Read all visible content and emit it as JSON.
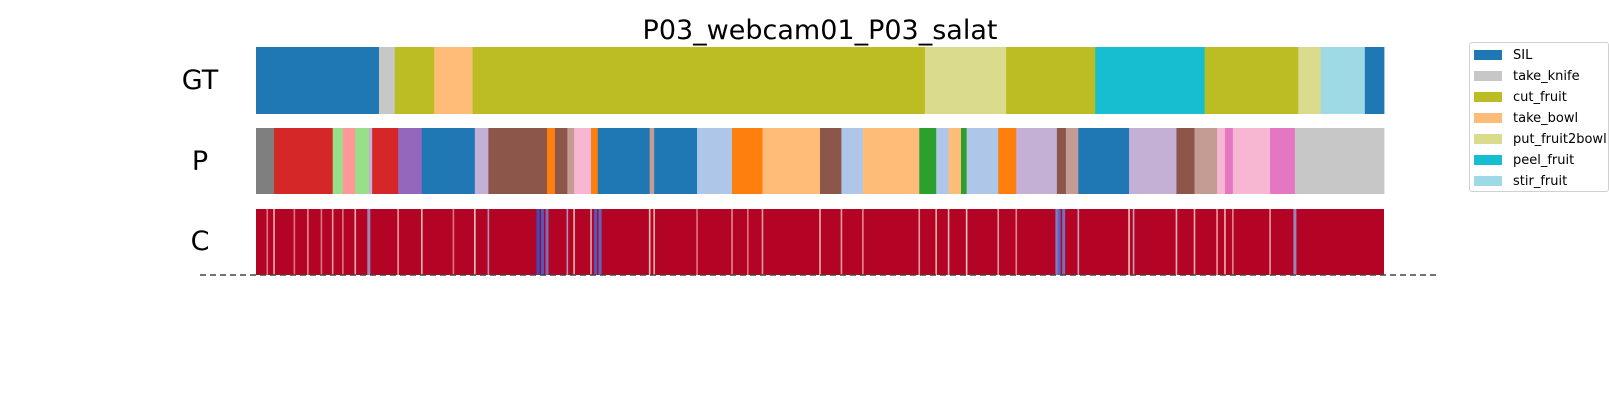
{
  "chart_data": {
    "type": "segmentation_timeline",
    "title": "P03_webcam01_P03_salat",
    "rows": [
      {
        "label": "GT",
        "segments": [
          {
            "start": 0.0,
            "end": 0.109,
            "color": "#1f77b4"
          },
          {
            "start": 0.109,
            "end": 0.123,
            "color": "#c7c7c7"
          },
          {
            "start": 0.123,
            "end": 0.158,
            "color": "#bcbd22"
          },
          {
            "start": 0.158,
            "end": 0.192,
            "color": "#ffbb78"
          },
          {
            "start": 0.192,
            "end": 0.593,
            "color": "#bcbd22"
          },
          {
            "start": 0.593,
            "end": 0.665,
            "color": "#dbdb8d"
          },
          {
            "start": 0.665,
            "end": 0.744,
            "color": "#bcbd22"
          },
          {
            "start": 0.744,
            "end": 0.841,
            "color": "#17becf"
          },
          {
            "start": 0.841,
            "end": 0.924,
            "color": "#bcbd22"
          },
          {
            "start": 0.924,
            "end": 0.944,
            "color": "#dbdb8d"
          },
          {
            "start": 0.944,
            "end": 0.983,
            "color": "#9edae5"
          },
          {
            "start": 0.983,
            "end": 1.0,
            "color": "#1f77b4"
          }
        ]
      },
      {
        "label": "P",
        "segments": [
          {
            "start": 0.0,
            "end": 0.016,
            "color": "#7f7f7f"
          },
          {
            "start": 0.016,
            "end": 0.068,
            "color": "#d62728"
          },
          {
            "start": 0.068,
            "end": 0.077,
            "color": "#98df8a"
          },
          {
            "start": 0.077,
            "end": 0.088,
            "color": "#ff9896"
          },
          {
            "start": 0.088,
            "end": 0.1,
            "color": "#98df8a"
          },
          {
            "start": 0.1,
            "end": 0.103,
            "color": "#c5b0d5"
          },
          {
            "start": 0.103,
            "end": 0.126,
            "color": "#d62728"
          },
          {
            "start": 0.126,
            "end": 0.147,
            "color": "#9467bd"
          },
          {
            "start": 0.147,
            "end": 0.194,
            "color": "#1f77b4"
          },
          {
            "start": 0.194,
            "end": 0.206,
            "color": "#c5b0d5"
          },
          {
            "start": 0.206,
            "end": 0.258,
            "color": "#8c564b"
          },
          {
            "start": 0.258,
            "end": 0.265,
            "color": "#ff7f0e"
          },
          {
            "start": 0.265,
            "end": 0.276,
            "color": "#8c564b"
          },
          {
            "start": 0.276,
            "end": 0.282,
            "color": "#c49c94"
          },
          {
            "start": 0.282,
            "end": 0.297,
            "color": "#f7b6d2"
          },
          {
            "start": 0.297,
            "end": 0.303,
            "color": "#ff7f0e"
          },
          {
            "start": 0.303,
            "end": 0.349,
            "color": "#1f77b4"
          },
          {
            "start": 0.349,
            "end": 0.353,
            "color": "#c49c94"
          },
          {
            "start": 0.353,
            "end": 0.391,
            "color": "#1f77b4"
          },
          {
            "start": 0.391,
            "end": 0.422,
            "color": "#aec7e8"
          },
          {
            "start": 0.422,
            "end": 0.449,
            "color": "#ff7f0e"
          },
          {
            "start": 0.449,
            "end": 0.5,
            "color": "#ffbb78"
          },
          {
            "start": 0.5,
            "end": 0.519,
            "color": "#8c564b"
          },
          {
            "start": 0.519,
            "end": 0.538,
            "color": "#aec7e8"
          },
          {
            "start": 0.538,
            "end": 0.588,
            "color": "#ffbb78"
          },
          {
            "start": 0.588,
            "end": 0.603,
            "color": "#2ca02c"
          },
          {
            "start": 0.603,
            "end": 0.614,
            "color": "#aec7e8"
          },
          {
            "start": 0.614,
            "end": 0.625,
            "color": "#ffbb78"
          },
          {
            "start": 0.625,
            "end": 0.63,
            "color": "#2ca02c"
          },
          {
            "start": 0.63,
            "end": 0.658,
            "color": "#aec7e8"
          },
          {
            "start": 0.658,
            "end": 0.674,
            "color": "#ff7f0e"
          },
          {
            "start": 0.674,
            "end": 0.71,
            "color": "#c5b0d5"
          },
          {
            "start": 0.71,
            "end": 0.718,
            "color": "#8c564b"
          },
          {
            "start": 0.718,
            "end": 0.729,
            "color": "#c49c94"
          },
          {
            "start": 0.729,
            "end": 0.774,
            "color": "#1f77b4"
          },
          {
            "start": 0.774,
            "end": 0.816,
            "color": "#c5b0d5"
          },
          {
            "start": 0.816,
            "end": 0.832,
            "color": "#8c564b"
          },
          {
            "start": 0.832,
            "end": 0.852,
            "color": "#c49c94"
          },
          {
            "start": 0.852,
            "end": 0.859,
            "color": "#f7b6d2"
          },
          {
            "start": 0.859,
            "end": 0.866,
            "color": "#e377c2"
          },
          {
            "start": 0.866,
            "end": 0.899,
            "color": "#f7b6d2"
          },
          {
            "start": 0.899,
            "end": 0.921,
            "color": "#e377c2"
          },
          {
            "start": 0.921,
            "end": 1.0,
            "color": "#c7c7c7"
          }
        ]
      },
      {
        "label": "C",
        "type": "confidence_heat",
        "base_color": "#b40426",
        "low_color": "#3b4cc0",
        "dips": [
          {
            "at": 0.01,
            "level": 0.7
          },
          {
            "at": 0.016,
            "level": 0.55
          },
          {
            "at": 0.034,
            "level": 0.7
          },
          {
            "at": 0.046,
            "level": 0.65
          },
          {
            "at": 0.058,
            "level": 0.7
          },
          {
            "at": 0.068,
            "level": 0.6
          },
          {
            "at": 0.077,
            "level": 0.7
          },
          {
            "at": 0.088,
            "level": 0.55
          },
          {
            "at": 0.1,
            "level": 0.25
          },
          {
            "at": 0.126,
            "level": 0.6
          },
          {
            "at": 0.147,
            "level": 0.45
          },
          {
            "at": 0.175,
            "level": 0.7
          },
          {
            "at": 0.194,
            "level": 0.5
          },
          {
            "at": 0.206,
            "level": 0.3
          },
          {
            "at": 0.25,
            "level": 0.0
          },
          {
            "at": 0.254,
            "level": 0.05
          },
          {
            "at": 0.258,
            "level": 0.15
          },
          {
            "at": 0.276,
            "level": 0.3
          },
          {
            "at": 0.282,
            "level": 0.45
          },
          {
            "at": 0.297,
            "level": 0.4
          },
          {
            "at": 0.301,
            "level": 0.05
          },
          {
            "at": 0.305,
            "level": 0.1
          },
          {
            "at": 0.349,
            "level": 0.5
          },
          {
            "at": 0.353,
            "level": 0.55
          },
          {
            "at": 0.391,
            "level": 0.7
          },
          {
            "at": 0.422,
            "level": 0.65
          },
          {
            "at": 0.436,
            "level": 0.7
          },
          {
            "at": 0.449,
            "level": 0.6
          },
          {
            "at": 0.5,
            "level": 0.55
          },
          {
            "at": 0.519,
            "level": 0.6
          },
          {
            "at": 0.538,
            "level": 0.65
          },
          {
            "at": 0.588,
            "level": 0.6
          },
          {
            "at": 0.603,
            "level": 0.55
          },
          {
            "at": 0.614,
            "level": 0.45
          },
          {
            "at": 0.63,
            "level": 0.5
          },
          {
            "at": 0.658,
            "level": 0.6
          },
          {
            "at": 0.674,
            "level": 0.65
          },
          {
            "at": 0.71,
            "level": 0.2
          },
          {
            "at": 0.712,
            "level": 0.1
          },
          {
            "at": 0.716,
            "level": 0.15
          },
          {
            "at": 0.729,
            "level": 0.35
          },
          {
            "at": 0.774,
            "level": 0.5
          },
          {
            "at": 0.778,
            "level": 0.35
          },
          {
            "at": 0.816,
            "level": 0.45
          },
          {
            "at": 0.832,
            "level": 0.55
          },
          {
            "at": 0.852,
            "level": 0.6
          },
          {
            "at": 0.859,
            "level": 0.55
          },
          {
            "at": 0.866,
            "level": 0.65
          },
          {
            "at": 0.899,
            "level": 0.6
          },
          {
            "at": 0.921,
            "level": 0.25
          }
        ]
      }
    ],
    "legend": {
      "position": "upper-right outside",
      "entries": [
        {
          "label": "SIL",
          "color": "#1f77b4"
        },
        {
          "label": "take_knife",
          "color": "#c7c7c7"
        },
        {
          "label": "cut_fruit",
          "color": "#bcbd22"
        },
        {
          "label": "take_bowl",
          "color": "#ffbb78"
        },
        {
          "label": "put_fruit2bowl",
          "color": "#dbdb8d"
        },
        {
          "label": "peel_fruit",
          "color": "#17becf"
        },
        {
          "label": "stir_fruit",
          "color": "#9edae5"
        }
      ]
    }
  }
}
